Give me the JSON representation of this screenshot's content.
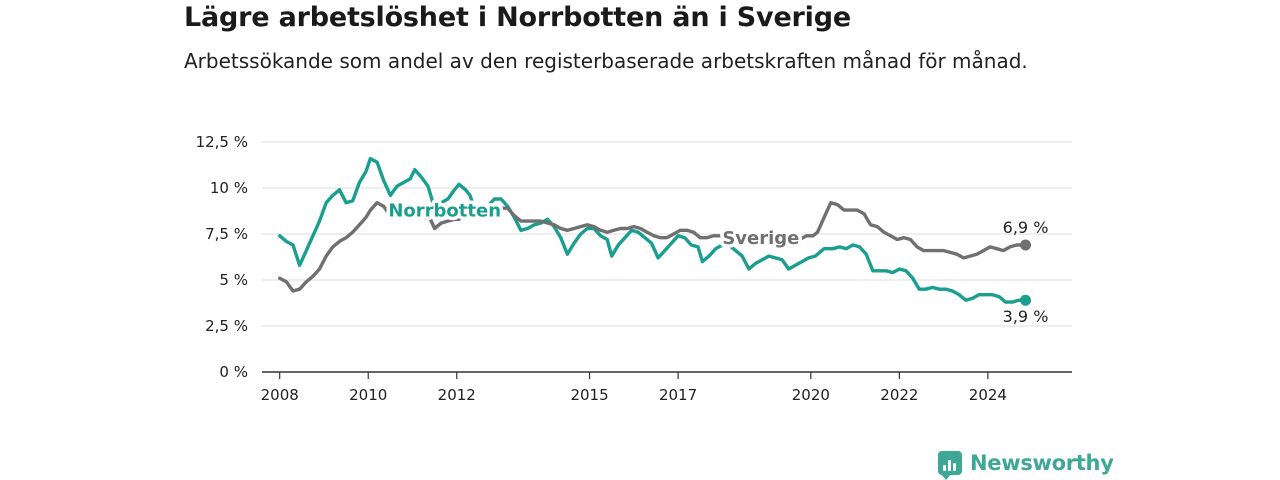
{
  "header": {
    "title": "Lägre arbetslöshet i Norrbotten än i Sverige",
    "subtitle": "Arbetssökande som andel av den registerbaserade arbetskraften månad för månad."
  },
  "brand": {
    "name": "Newsworthy",
    "icon": "bar-chart-speech-icon",
    "color": "#3fa796"
  },
  "chart_data": {
    "type": "line",
    "title": "Lägre arbetslöshet i Norrbotten än i Sverige",
    "subtitle": "Arbetssökande som andel av den registerbaserade arbetskraften månad för månad.",
    "xlabel": "",
    "ylabel": "",
    "ylim": [
      0,
      12.5
    ],
    "xlim": [
      2007.6,
      2025.9
    ],
    "y_ticks": [
      {
        "value": 0,
        "label": "0 %"
      },
      {
        "value": 2.5,
        "label": "2,5 %"
      },
      {
        "value": 5,
        "label": "5 %"
      },
      {
        "value": 7.5,
        "label": "7,5 %"
      },
      {
        "value": 10,
        "label": "10 %"
      },
      {
        "value": 12.5,
        "label": "12,5 %"
      }
    ],
    "x_ticks": [
      {
        "value": 2008,
        "label": "2008"
      },
      {
        "value": 2010,
        "label": "2010"
      },
      {
        "value": 2012,
        "label": "2012"
      },
      {
        "value": 2015,
        "label": "2015"
      },
      {
        "value": 2017,
        "label": "2017"
      },
      {
        "value": 2020,
        "label": "2020"
      },
      {
        "value": 2022,
        "label": "2022"
      },
      {
        "value": 2024,
        "label": "2024"
      }
    ],
    "grid": true,
    "legend": "direct labels",
    "series": [
      {
        "name": "Norrbotten",
        "color": "#1a9e8f",
        "end_label": "3,9 %",
        "points": [
          [
            2008.0,
            7.4
          ],
          [
            2008.15,
            7.1
          ],
          [
            2008.3,
            6.9
          ],
          [
            2008.45,
            5.8
          ],
          [
            2008.6,
            6.6
          ],
          [
            2008.75,
            7.4
          ],
          [
            2008.9,
            8.2
          ],
          [
            2009.05,
            9.2
          ],
          [
            2009.2,
            9.6
          ],
          [
            2009.35,
            9.9
          ],
          [
            2009.5,
            9.2
          ],
          [
            2009.65,
            9.3
          ],
          [
            2009.8,
            10.3
          ],
          [
            2009.95,
            10.9
          ],
          [
            2010.05,
            11.6
          ],
          [
            2010.2,
            11.4
          ],
          [
            2010.35,
            10.4
          ],
          [
            2010.5,
            9.6
          ],
          [
            2010.65,
            10.1
          ],
          [
            2010.8,
            10.3
          ],
          [
            2010.95,
            10.5
          ],
          [
            2011.05,
            11.0
          ],
          [
            2011.2,
            10.6
          ],
          [
            2011.35,
            10.1
          ],
          [
            2011.5,
            8.9
          ],
          [
            2011.65,
            9.2
          ],
          [
            2011.8,
            9.4
          ],
          [
            2011.95,
            9.9
          ],
          [
            2012.05,
            10.2
          ],
          [
            2012.2,
            9.9
          ],
          [
            2012.3,
            9.6
          ],
          [
            2012.4,
            8.9
          ],
          [
            2012.55,
            8.6
          ],
          [
            2012.7,
            9.0
          ],
          [
            2012.85,
            9.4
          ],
          [
            2013.0,
            9.4
          ],
          [
            2013.15,
            9.0
          ],
          [
            2013.3,
            8.4
          ],
          [
            2013.45,
            7.7
          ],
          [
            2013.6,
            7.8
          ],
          [
            2013.75,
            8.0
          ],
          [
            2013.9,
            8.1
          ],
          [
            2014.05,
            8.3
          ],
          [
            2014.2,
            7.9
          ],
          [
            2014.35,
            7.3
          ],
          [
            2014.5,
            6.4
          ],
          [
            2014.65,
            7.0
          ],
          [
            2014.8,
            7.5
          ],
          [
            2014.95,
            7.8
          ],
          [
            2015.1,
            7.8
          ],
          [
            2015.25,
            7.4
          ],
          [
            2015.4,
            7.2
          ],
          [
            2015.5,
            6.3
          ],
          [
            2015.65,
            6.9
          ],
          [
            2015.8,
            7.3
          ],
          [
            2015.95,
            7.7
          ],
          [
            2016.1,
            7.6
          ],
          [
            2016.25,
            7.3
          ],
          [
            2016.4,
            7.0
          ],
          [
            2016.55,
            6.2
          ],
          [
            2016.7,
            6.6
          ],
          [
            2016.85,
            7.0
          ],
          [
            2017.0,
            7.4
          ],
          [
            2017.15,
            7.3
          ],
          [
            2017.3,
            6.9
          ],
          [
            2017.45,
            6.8
          ],
          [
            2017.55,
            6.0
          ],
          [
            2017.7,
            6.3
          ],
          [
            2017.85,
            6.7
          ],
          [
            2018.0,
            6.9
          ],
          [
            2018.15,
            6.9
          ],
          [
            2018.3,
            6.6
          ],
          [
            2018.45,
            6.3
          ],
          [
            2018.6,
            5.6
          ],
          [
            2018.75,
            5.9
          ],
          [
            2018.9,
            6.1
          ],
          [
            2019.05,
            6.3
          ],
          [
            2019.2,
            6.2
          ],
          [
            2019.35,
            6.1
          ],
          [
            2019.5,
            5.6
          ],
          [
            2019.65,
            5.8
          ],
          [
            2019.8,
            6.0
          ],
          [
            2019.95,
            6.2
          ],
          [
            2020.1,
            6.3
          ],
          [
            2020.3,
            6.7
          ],
          [
            2020.5,
            6.7
          ],
          [
            2020.65,
            6.8
          ],
          [
            2020.8,
            6.7
          ],
          [
            2020.95,
            6.9
          ],
          [
            2021.1,
            6.8
          ],
          [
            2021.25,
            6.4
          ],
          [
            2021.4,
            5.5
          ],
          [
            2021.55,
            5.5
          ],
          [
            2021.7,
            5.5
          ],
          [
            2021.85,
            5.4
          ],
          [
            2022.0,
            5.6
          ],
          [
            2022.15,
            5.5
          ],
          [
            2022.3,
            5.1
          ],
          [
            2022.45,
            4.5
          ],
          [
            2022.6,
            4.5
          ],
          [
            2022.75,
            4.6
          ],
          [
            2022.9,
            4.5
          ],
          [
            2023.05,
            4.5
          ],
          [
            2023.2,
            4.4
          ],
          [
            2023.35,
            4.2
          ],
          [
            2023.5,
            3.9
          ],
          [
            2023.65,
            4.0
          ],
          [
            2023.8,
            4.2
          ],
          [
            2023.95,
            4.2
          ],
          [
            2024.1,
            4.2
          ],
          [
            2024.25,
            4.1
          ],
          [
            2024.4,
            3.8
          ],
          [
            2024.55,
            3.8
          ],
          [
            2024.7,
            3.9
          ],
          [
            2024.85,
            3.9
          ]
        ]
      },
      {
        "name": "Sverige",
        "color": "#707070",
        "end_label": "6,9 %",
        "points": [
          [
            2008.0,
            5.1
          ],
          [
            2008.15,
            4.9
          ],
          [
            2008.3,
            4.4
          ],
          [
            2008.45,
            4.5
          ],
          [
            2008.6,
            4.9
          ],
          [
            2008.75,
            5.2
          ],
          [
            2008.9,
            5.6
          ],
          [
            2009.05,
            6.3
          ],
          [
            2009.2,
            6.8
          ],
          [
            2009.35,
            7.1
          ],
          [
            2009.5,
            7.3
          ],
          [
            2009.65,
            7.6
          ],
          [
            2009.8,
            8.0
          ],
          [
            2009.95,
            8.4
          ],
          [
            2010.05,
            8.8
          ],
          [
            2010.2,
            9.2
          ],
          [
            2010.35,
            9.0
          ],
          [
            2010.5,
            8.5
          ],
          [
            2010.65,
            8.6
          ],
          [
            2010.8,
            8.6
          ],
          [
            2010.95,
            8.6
          ],
          [
            2011.05,
            8.6
          ],
          [
            2011.2,
            8.9
          ],
          [
            2011.35,
            8.6
          ],
          [
            2011.5,
            7.8
          ],
          [
            2011.65,
            8.1
          ],
          [
            2011.8,
            8.2
          ],
          [
            2011.95,
            8.3
          ],
          [
            2012.05,
            8.3
          ],
          [
            2012.2,
            8.6
          ],
          [
            2012.3,
            8.7
          ],
          [
            2012.4,
            8.5
          ],
          [
            2012.55,
            8.5
          ],
          [
            2012.7,
            8.8
          ],
          [
            2012.85,
            8.9
          ],
          [
            2013.0,
            8.9
          ],
          [
            2013.15,
            8.9
          ],
          [
            2013.3,
            8.5
          ],
          [
            2013.45,
            8.2
          ],
          [
            2013.6,
            8.2
          ],
          [
            2013.75,
            8.2
          ],
          [
            2013.9,
            8.2
          ],
          [
            2014.05,
            8.1
          ],
          [
            2014.2,
            8.0
          ],
          [
            2014.35,
            7.8
          ],
          [
            2014.5,
            7.7
          ],
          [
            2014.65,
            7.8
          ],
          [
            2014.8,
            7.9
          ],
          [
            2014.95,
            8.0
          ],
          [
            2015.1,
            7.9
          ],
          [
            2015.25,
            7.7
          ],
          [
            2015.4,
            7.6
          ],
          [
            2015.55,
            7.7
          ],
          [
            2015.7,
            7.8
          ],
          [
            2015.85,
            7.8
          ],
          [
            2016.0,
            7.9
          ],
          [
            2016.15,
            7.8
          ],
          [
            2016.3,
            7.6
          ],
          [
            2016.45,
            7.4
          ],
          [
            2016.6,
            7.3
          ],
          [
            2016.75,
            7.3
          ],
          [
            2016.9,
            7.5
          ],
          [
            2017.05,
            7.7
          ],
          [
            2017.2,
            7.7
          ],
          [
            2017.35,
            7.6
          ],
          [
            2017.5,
            7.3
          ],
          [
            2017.65,
            7.3
          ],
          [
            2017.8,
            7.4
          ],
          [
            2017.95,
            7.4
          ],
          [
            2018.1,
            7.4
          ],
          [
            2018.25,
            7.3
          ],
          [
            2018.4,
            7.2
          ],
          [
            2018.55,
            7.0
          ],
          [
            2018.7,
            7.0
          ],
          [
            2018.85,
            7.1
          ],
          [
            2019.0,
            7.2
          ],
          [
            2019.15,
            7.1
          ],
          [
            2019.3,
            7.0
          ],
          [
            2019.45,
            6.9
          ],
          [
            2019.6,
            7.0
          ],
          [
            2019.75,
            7.2
          ],
          [
            2019.9,
            7.4
          ],
          [
            2020.05,
            7.4
          ],
          [
            2020.15,
            7.6
          ],
          [
            2020.3,
            8.4
          ],
          [
            2020.45,
            9.2
          ],
          [
            2020.6,
            9.1
          ],
          [
            2020.75,
            8.8
          ],
          [
            2020.9,
            8.8
          ],
          [
            2021.05,
            8.8
          ],
          [
            2021.2,
            8.6
          ],
          [
            2021.35,
            8.0
          ],
          [
            2021.5,
            7.9
          ],
          [
            2021.65,
            7.6
          ],
          [
            2021.8,
            7.4
          ],
          [
            2021.95,
            7.2
          ],
          [
            2022.1,
            7.3
          ],
          [
            2022.25,
            7.2
          ],
          [
            2022.4,
            6.8
          ],
          [
            2022.55,
            6.6
          ],
          [
            2022.7,
            6.6
          ],
          [
            2022.85,
            6.6
          ],
          [
            2023.0,
            6.6
          ],
          [
            2023.15,
            6.5
          ],
          [
            2023.3,
            6.4
          ],
          [
            2023.45,
            6.2
          ],
          [
            2023.6,
            6.3
          ],
          [
            2023.75,
            6.4
          ],
          [
            2023.9,
            6.6
          ],
          [
            2024.05,
            6.8
          ],
          [
            2024.2,
            6.7
          ],
          [
            2024.35,
            6.6
          ],
          [
            2024.5,
            6.8
          ],
          [
            2024.65,
            6.9
          ],
          [
            2024.85,
            6.9
          ]
        ]
      }
    ]
  }
}
